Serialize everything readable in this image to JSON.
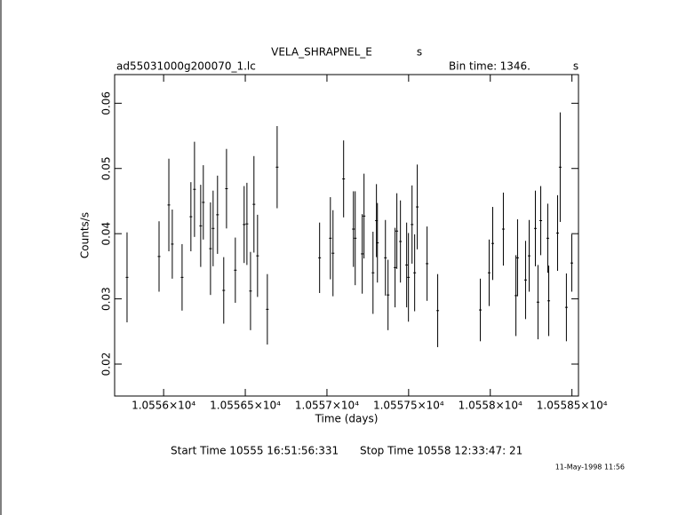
{
  "chart_data": {
    "type": "errorbar",
    "title": "VELA_SHRAPNEL_E",
    "title_suffix": "s",
    "subtitle": "ad55031000g200070_1.lc",
    "bin_time_label": "Bin time:",
    "bin_time": "1346.",
    "bin_time_unit": "s",
    "xlabel": "Time (days)",
    "ylabel": "Counts/s",
    "xlim": [
      10555.7,
      10558.54
    ],
    "ylim": [
      0.0151,
      0.0644
    ],
    "xticks": [
      {
        "value": 10556,
        "label": "1.0556×10⁴"
      },
      {
        "value": 10556.5,
        "label": "1.05565×10⁴"
      },
      {
        "value": 10557,
        "label": "1.0557×10⁴"
      },
      {
        "value": 10557.5,
        "label": "1.05575×10⁴"
      },
      {
        "value": 10558,
        "label": "1.0558×10⁴"
      },
      {
        "value": 10558.5,
        "label": "1.05585×10⁴"
      }
    ],
    "yticks": [
      0.02,
      0.03,
      0.04,
      0.05,
      0.06
    ],
    "color": "#000000",
    "x": [
      10555.776,
      10555.972,
      10556.032,
      10556.053,
      10556.113,
      10556.167,
      10556.189,
      10556.227,
      10556.243,
      10556.287,
      10556.303,
      10556.33,
      10556.368,
      10556.385,
      10556.439,
      10556.493,
      10556.51,
      10556.532,
      10556.553,
      10556.575,
      10556.635,
      10556.695,
      10556.955,
      10557.021,
      10557.037,
      10557.102,
      10557.162,
      10557.173,
      10557.216,
      10557.227,
      10557.282,
      10557.303,
      10557.309,
      10557.358,
      10557.374,
      10557.417,
      10557.428,
      10557.45,
      10557.488,
      10557.499,
      10557.521,
      10557.537,
      10557.553,
      10557.613,
      10557.678,
      10557.939,
      10557.993,
      10558.015,
      10558.08,
      10558.157,
      10558.167,
      10558.216,
      10558.238,
      10558.276,
      10558.292,
      10558.309,
      10558.352,
      10558.358,
      10558.412,
      10558.428,
      10558.466,
      10558.499
    ],
    "values": [
      0.0333,
      0.0365,
      0.0444,
      0.0384,
      0.0333,
      0.0426,
      0.0468,
      0.0412,
      0.0448,
      0.0377,
      0.0408,
      0.0429,
      0.0313,
      0.0469,
      0.0344,
      0.0414,
      0.0415,
      0.0312,
      0.0445,
      0.0366,
      0.0284,
      0.0502,
      0.0363,
      0.0393,
      0.037,
      0.0484,
      0.0407,
      0.0393,
      0.0369,
      0.0427,
      0.034,
      0.042,
      0.0386,
      0.0363,
      0.0306,
      0.0348,
      0.0404,
      0.0388,
      0.0352,
      0.0333,
      0.0414,
      0.034,
      0.0441,
      0.0354,
      0.0282,
      0.0283,
      0.034,
      0.0385,
      0.0407,
      0.0305,
      0.0363,
      0.0329,
      0.0366,
      0.0408,
      0.0295,
      0.042,
      0.0393,
      0.0297,
      0.0401,
      0.0502,
      0.0287,
      0.0355
    ],
    "errors": [
      0.0069,
      0.0054,
      0.0071,
      0.0053,
      0.0051,
      0.0053,
      0.0073,
      0.0063,
      0.0057,
      0.0071,
      0.0058,
      0.006,
      0.0051,
      0.0061,
      0.005,
      0.0059,
      0.0063,
      0.006,
      0.0074,
      0.0063,
      0.0054,
      0.0063,
      0.0054,
      0.0063,
      0.0066,
      0.0059,
      0.0058,
      0.0072,
      0.0061,
      0.0065,
      0.0063,
      0.0056,
      0.0061,
      0.0058,
      0.0054,
      0.0061,
      0.0058,
      0.0063,
      0.0065,
      0.0068,
      0.006,
      0.0059,
      0.0065,
      0.0057,
      0.0056,
      0.0048,
      0.0051,
      0.0056,
      0.0056,
      0.0062,
      0.0059,
      0.006,
      0.0055,
      0.0058,
      0.0057,
      0.0053,
      0.0053,
      0.0054,
      0.0058,
      0.0084,
      0.0052,
      0.0044
    ],
    "footer": {
      "start": "Start Time 10555 16:51:56:331",
      "stop": "Stop Time 10558 12:33:47: 21",
      "date": "11-May-1998 11:56"
    }
  }
}
